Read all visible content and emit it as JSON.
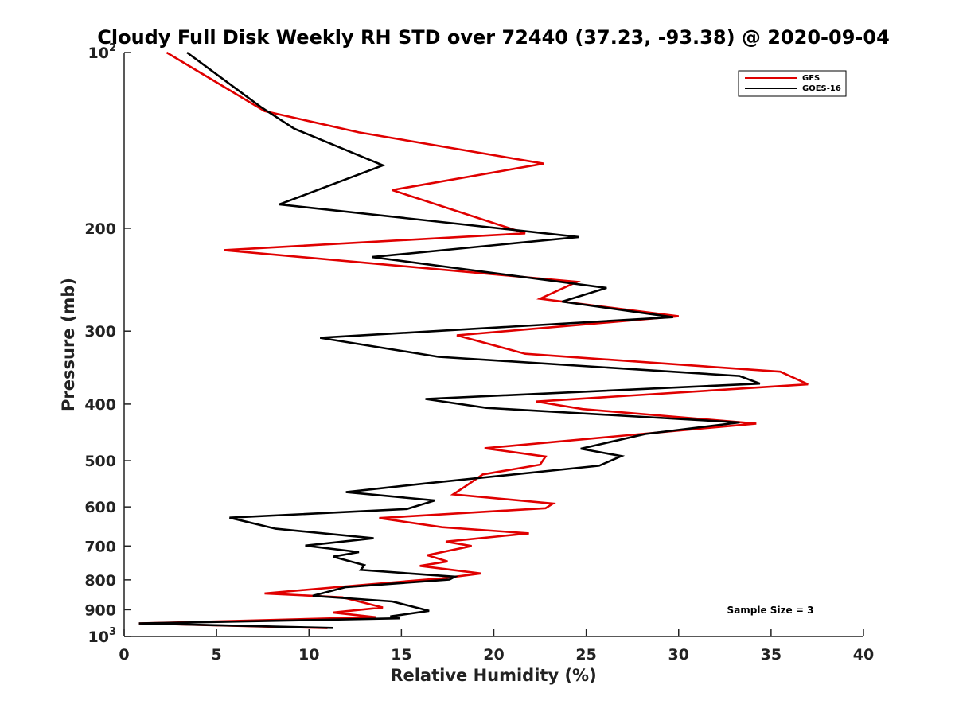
{
  "chart_data": {
    "type": "line",
    "title": "Cloudy Full Disk Weekly RH STD over 72440 (37.23, -93.38) @ 2020-09-04",
    "xlabel": "Relative Humidity (%)",
    "ylabel": "Pressure (mb)",
    "xlim": [
      0,
      40
    ],
    "ylim": [
      100,
      1000
    ],
    "y_scale": "log",
    "y_reversed": true,
    "grid": false,
    "legend_position": "top-right",
    "x_ticks": [
      0,
      5,
      10,
      15,
      20,
      25,
      30,
      35,
      40
    ],
    "y_ticks": [
      {
        "value": 100,
        "label": "10",
        "exp": "2"
      },
      {
        "value": 200,
        "label": "200"
      },
      {
        "value": 300,
        "label": "300"
      },
      {
        "value": 400,
        "label": "400"
      },
      {
        "value": 500,
        "label": "500"
      },
      {
        "value": 600,
        "label": "600"
      },
      {
        "value": 700,
        "label": "700"
      },
      {
        "value": 800,
        "label": "800"
      },
      {
        "value": 900,
        "label": "900"
      },
      {
        "value": 1000,
        "label": "10",
        "exp": "3"
      }
    ],
    "annotation": "Sample Size = 3",
    "series": [
      {
        "name": "GFS",
        "color": "#e00000",
        "points": [
          [
            2.3,
            100
          ],
          [
            7.6,
            126
          ],
          [
            12.7,
            137
          ],
          [
            22.7,
            155
          ],
          [
            14.5,
            172
          ],
          [
            21.7,
            204
          ],
          [
            5.4,
            218
          ],
          [
            24.5,
            247
          ],
          [
            22.5,
            264
          ],
          [
            30.0,
            283
          ],
          [
            18.0,
            305
          ],
          [
            21.7,
            328
          ],
          [
            35.5,
            352
          ],
          [
            37.0,
            370
          ],
          [
            22.3,
            396
          ],
          [
            24.8,
            408
          ],
          [
            34.2,
            432
          ],
          [
            19.5,
            476
          ],
          [
            22.8,
            492
          ],
          [
            22.5,
            508
          ],
          [
            19.4,
            528
          ],
          [
            18.4,
            555
          ],
          [
            17.8,
            571
          ],
          [
            23.2,
            592
          ],
          [
            22.8,
            603
          ],
          [
            13.8,
            627
          ],
          [
            17.2,
            650
          ],
          [
            21.9,
            666
          ],
          [
            17.4,
            688
          ],
          [
            18.8,
            700
          ],
          [
            16.4,
            726
          ],
          [
            17.5,
            744
          ],
          [
            16.0,
            757
          ],
          [
            19.3,
            780
          ],
          [
            17.2,
            795
          ],
          [
            12.5,
            818
          ],
          [
            7.6,
            844
          ],
          [
            11.8,
            857
          ],
          [
            14.0,
            892
          ],
          [
            11.3,
            910
          ],
          [
            13.6,
            927
          ],
          [
            0.8,
            950
          ],
          [
            11.0,
            968
          ]
        ]
      },
      {
        "name": "GOES-16",
        "color": "#000000",
        "points": [
          [
            3.4,
            100
          ],
          [
            7.4,
            124
          ],
          [
            9.2,
            135
          ],
          [
            14.0,
            156
          ],
          [
            8.4,
            182
          ],
          [
            24.6,
            207
          ],
          [
            13.4,
            224
          ],
          [
            26.1,
            253
          ],
          [
            23.7,
            267
          ],
          [
            29.7,
            284
          ],
          [
            10.6,
            308
          ],
          [
            17.0,
            332
          ],
          [
            33.3,
            358
          ],
          [
            34.4,
            369
          ],
          [
            16.3,
            392
          ],
          [
            19.6,
            406
          ],
          [
            33.3,
            430
          ],
          [
            28.2,
            450
          ],
          [
            24.7,
            477
          ],
          [
            26.9,
            491
          ],
          [
            25.7,
            510
          ],
          [
            16.3,
            547
          ],
          [
            12.0,
            566
          ],
          [
            16.8,
            585
          ],
          [
            15.3,
            605
          ],
          [
            5.7,
            626
          ],
          [
            8.2,
            654
          ],
          [
            13.5,
            679
          ],
          [
            9.8,
            699
          ],
          [
            12.7,
            717
          ],
          [
            11.3,
            730
          ],
          [
            13.0,
            755
          ],
          [
            12.8,
            769
          ],
          [
            17.9,
            790
          ],
          [
            17.6,
            799
          ],
          [
            12.0,
            823
          ],
          [
            10.2,
            852
          ],
          [
            14.5,
            871
          ],
          [
            16.5,
            904
          ],
          [
            14.4,
            924
          ],
          [
            14.9,
            931
          ],
          [
            0.8,
            950
          ],
          [
            11.3,
            967
          ]
        ]
      }
    ]
  }
}
